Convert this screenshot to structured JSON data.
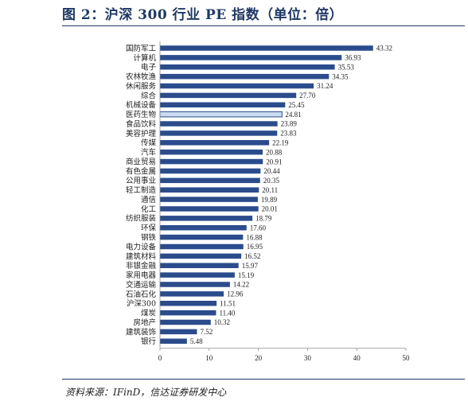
{
  "figure": {
    "title": "图 2：沪深 300 行业 PE 指数（单位：倍）",
    "source": "资料来源：IFinD，信达证券研发中心"
  },
  "chart_data": {
    "type": "bar",
    "orientation": "horizontal",
    "xlim": [
      0,
      50
    ],
    "xticks": [
      0,
      10,
      20,
      30,
      40,
      50
    ],
    "grid": false,
    "legend": "none",
    "colors": {
      "default": "#2b4c8c",
      "highlight": "#c9dcf0",
      "highlight_stroke": "#2b4c8c"
    },
    "categories": [
      "国防军工",
      "计算机",
      "电子",
      "农林牧渔",
      "休闲服务",
      "综合",
      "机械设备",
      "医药生物",
      "食品饮料",
      "美容护理",
      "传媒",
      "汽车",
      "商业贸易",
      "有色金属",
      "公用事业",
      "轻工制造",
      "通信",
      "化工",
      "纺织服装",
      "环保",
      "钢铁",
      "电力设备",
      "建筑材料",
      "非银金融",
      "家用电器",
      "交通运输",
      "石油石化",
      "沪深300",
      "煤炭",
      "房地产",
      "建筑装饰",
      "银行"
    ],
    "values": [
      43.32,
      36.93,
      35.53,
      34.35,
      31.24,
      27.7,
      25.45,
      24.81,
      23.89,
      23.83,
      22.19,
      20.88,
      20.91,
      20.44,
      20.35,
      20.11,
      19.89,
      20.01,
      18.79,
      17.6,
      16.88,
      16.95,
      16.52,
      15.97,
      15.19,
      14.22,
      12.96,
      11.51,
      11.4,
      10.32,
      7.52,
      5.48
    ],
    "value_labels": [
      "43.32",
      "36.93",
      "35.53",
      "34.35",
      "31.24",
      "27.70",
      "25.45",
      "24.81",
      "23.89",
      "23.83",
      "22.19",
      "20.88",
      "20.91",
      "20.44",
      "20.35",
      "20.11",
      "19.89",
      "20.01",
      "18.79",
      "17.60",
      "16.88",
      "16.95",
      "16.52",
      "15.97",
      "15.19",
      "14.22",
      "12.96",
      "11.51",
      "11.40",
      "10.32",
      "7.52",
      "5.48"
    ],
    "highlight": [
      "医药生物"
    ]
  }
}
